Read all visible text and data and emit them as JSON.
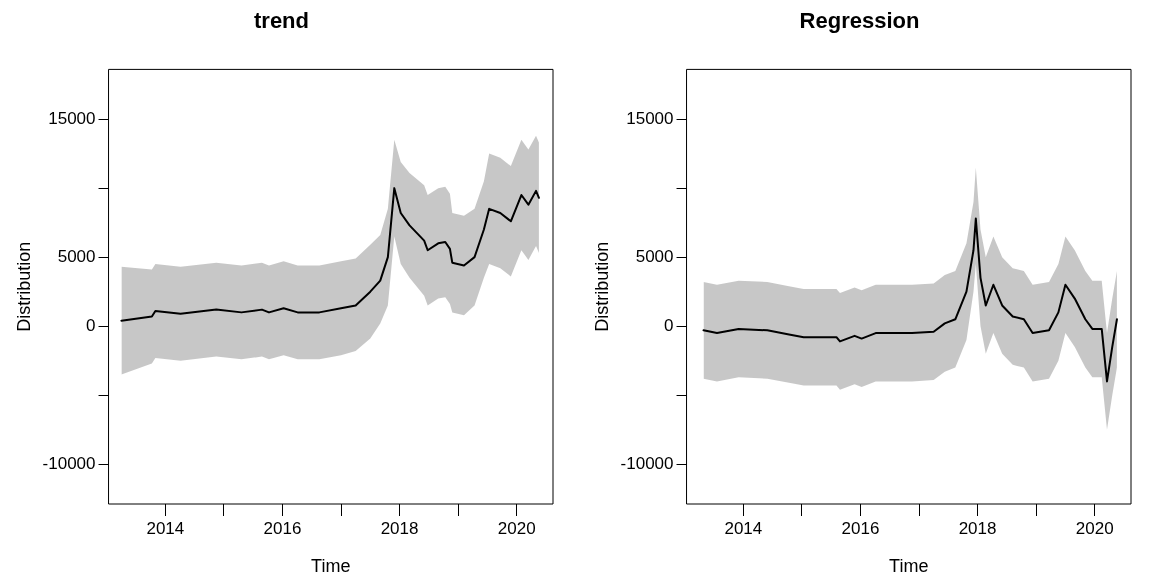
{
  "chart_data": [
    {
      "type": "line",
      "title": "trend",
      "xlabel": "Time",
      "ylabel": "Distribution",
      "grid": false,
      "legend": false,
      "marker": "none",
      "line_style": "solid",
      "xlim": [
        2013.03,
        2020.62
      ],
      "xticks": [
        2014,
        {
          "value": 2015,
          "label": null
        },
        2016,
        {
          "value": 2017,
          "label": null
        },
        2018,
        {
          "value": 2019,
          "label": null
        },
        2020
      ],
      "ylim": [
        -12880,
        18600
      ],
      "yticks": [
        {
          "value": -10000,
          "label": "-10000"
        },
        {
          "value": -5000,
          "label": null
        },
        0,
        5000,
        {
          "value": 10000,
          "label": null
        },
        15000
      ],
      "x": [
        2013.25,
        2013.77,
        2013.83,
        2014.26,
        2014.87,
        2015.3,
        2015.65,
        2015.77,
        2016.02,
        2016.26,
        2016.63,
        2017.0,
        2017.25,
        2017.5,
        2017.67,
        2017.8,
        2017.91,
        2018.02,
        2018.17,
        2018.42,
        2018.48,
        2018.66,
        2018.78,
        2018.86,
        2018.9,
        2019.1,
        2019.28,
        2019.44,
        2019.53,
        2019.72,
        2019.9,
        2020.08,
        2020.2,
        2020.33,
        2020.38
      ],
      "series": [
        {
          "color": "#000000",
          "values": [
            400,
            700,
            1100,
            900,
            1200,
            1000,
            1200,
            1000,
            1300,
            1000,
            1000,
            1300,
            1500,
            2500,
            3300,
            5000,
            10000,
            8200,
            7300,
            6200,
            5500,
            6000,
            6100,
            5600,
            4600,
            4400,
            5000,
            7000,
            8500,
            8200,
            7600,
            9500,
            8800,
            9800,
            9300
          ],
          "lower": [
            -3500,
            -2700,
            -2300,
            -2500,
            -2200,
            -2400,
            -2200,
            -2400,
            -2100,
            -2400,
            -2400,
            -2100,
            -1800,
            -900,
            200,
            1500,
            6500,
            4500,
            3500,
            2200,
            1500,
            2000,
            2100,
            1600,
            1000,
            800,
            1500,
            3500,
            4500,
            4200,
            3600,
            5500,
            4800,
            5800,
            5300
          ],
          "upper": [
            4300,
            4100,
            4500,
            4300,
            4600,
            4400,
            4600,
            4400,
            4700,
            4400,
            4400,
            4700,
            4900,
            5900,
            6600,
            8500,
            13500,
            11900,
            11100,
            10200,
            9500,
            10000,
            10100,
            9600,
            8200,
            8000,
            8500,
            10500,
            12500,
            12200,
            11600,
            13500,
            12800,
            13800,
            13300
          ]
        }
      ]
    },
    {
      "type": "line",
      "title": "Regression",
      "xlabel": "Time",
      "ylabel": "Distribution",
      "grid": false,
      "legend": false,
      "marker": "none",
      "line_style": "solid",
      "xlim": [
        2013.03,
        2020.62
      ],
      "xticks": [
        2014,
        {
          "value": 2015,
          "label": null
        },
        2016,
        {
          "value": 2017,
          "label": null
        },
        2018,
        {
          "value": 2019,
          "label": null
        },
        2020
      ],
      "ylim": [
        -12880,
        18600
      ],
      "yticks": [
        {
          "value": -10000,
          "label": "-10000"
        },
        {
          "value": -5000,
          "label": null
        },
        0,
        5000,
        {
          "value": 10000,
          "label": null
        },
        15000
      ],
      "x": [
        2013.32,
        2013.55,
        2013.92,
        2014.41,
        2014.78,
        2015.03,
        2015.59,
        2015.65,
        2015.9,
        2016.02,
        2016.26,
        2016.88,
        2017.25,
        2017.44,
        2017.62,
        2017.81,
        2017.93,
        2017.97,
        2018.05,
        2018.14,
        2018.27,
        2018.42,
        2018.6,
        2018.79,
        2018.94,
        2019.22,
        2019.38,
        2019.5,
        2019.66,
        2019.84,
        2019.96,
        2020.12,
        2020.21,
        2020.3,
        2020.38
      ],
      "series": [
        {
          "color": "#000000",
          "values": [
            -300,
            -500,
            -200,
            -300,
            -600,
            -800,
            -800,
            -1100,
            -700,
            -900,
            -500,
            -500,
            -400,
            200,
            500,
            2500,
            5500,
            7800,
            3500,
            1500,
            3000,
            1500,
            700,
            500,
            -500,
            -300,
            1000,
            3000,
            2000,
            500,
            -200,
            -200,
            -4000,
            -1500,
            500
          ],
          "lower": [
            -3800,
            -4000,
            -3700,
            -3800,
            -4100,
            -4300,
            -4300,
            -4600,
            -4200,
            -4400,
            -4000,
            -4000,
            -3900,
            -3300,
            -3000,
            -1000,
            2500,
            4500,
            0,
            -2000,
            -500,
            -2000,
            -2800,
            -3000,
            -4000,
            -3800,
            -2500,
            -500,
            -1500,
            -3000,
            -3700,
            -3700,
            -7500,
            -5000,
            -3000
          ],
          "upper": [
            3200,
            3000,
            3300,
            3200,
            2900,
            2700,
            2700,
            2400,
            2800,
            2600,
            3000,
            3000,
            3100,
            3700,
            4000,
            6000,
            9000,
            11500,
            7000,
            5000,
            6500,
            5000,
            4200,
            4000,
            3000,
            3200,
            4500,
            6500,
            5500,
            4000,
            3300,
            3300,
            -500,
            2000,
            4000
          ]
        }
      ]
    }
  ]
}
